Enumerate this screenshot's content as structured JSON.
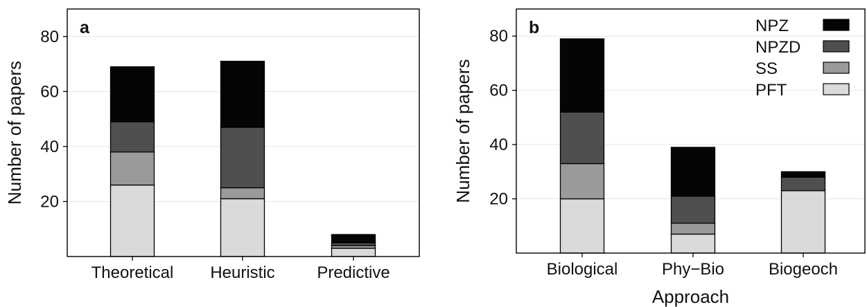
{
  "colors": {
    "NPZ": "#050505",
    "NPZD": "#4f4f4f",
    "SS": "#9a9a9a",
    "PFT": "#dadada",
    "grid": "#e6e6e6"
  },
  "chart_data": [
    {
      "type": "bar",
      "stacked": true,
      "panel_label": "a",
      "categories": [
        "Theoretical",
        "Heuristic",
        "Predictive"
      ],
      "series": [
        {
          "name": "PFT",
          "values": [
            26,
            21,
            3
          ]
        },
        {
          "name": "SS",
          "values": [
            12,
            4,
            1
          ]
        },
        {
          "name": "NPZD",
          "values": [
            11,
            22,
            1
          ]
        },
        {
          "name": "NPZ",
          "values": [
            20,
            24,
            3
          ]
        }
      ],
      "xlabel": "",
      "ylabel": "Number of papers",
      "ylim": [
        0,
        90
      ],
      "yticks": [
        20,
        40,
        60,
        80
      ],
      "grid": true,
      "legend": false
    },
    {
      "type": "bar",
      "stacked": true,
      "panel_label": "b",
      "categories": [
        "Biological",
        "Phy−Bio",
        "Biogeoch"
      ],
      "series": [
        {
          "name": "PFT",
          "values": [
            20,
            7,
            23
          ]
        },
        {
          "name": "SS",
          "values": [
            13,
            4,
            0
          ]
        },
        {
          "name": "NPZD",
          "values": [
            19,
            10,
            5
          ]
        },
        {
          "name": "NPZ",
          "values": [
            27,
            18,
            2
          ]
        }
      ],
      "xlabel": "Approach",
      "ylabel": "Number of papers",
      "ylim": [
        0,
        90
      ],
      "yticks": [
        20,
        40,
        60,
        80
      ],
      "grid": true,
      "legend": true,
      "legend_position": "top-right",
      "legend_order": [
        "NPZ",
        "NPZD",
        "SS",
        "PFT"
      ]
    }
  ]
}
